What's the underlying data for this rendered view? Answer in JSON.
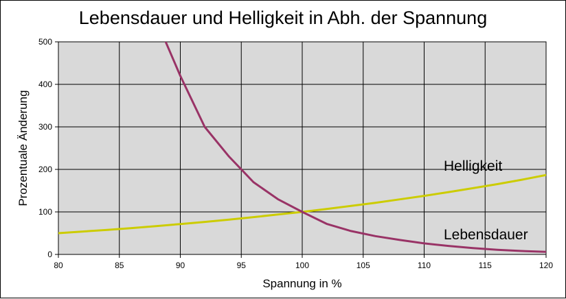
{
  "chart_data": {
    "type": "line",
    "title": "Lebensdauer und Helligkeit in Abh. der Spannung",
    "xlabel": "Spannung in %",
    "ylabel": "Prozentuale Änderung",
    "xlim": [
      80,
      120
    ],
    "ylim": [
      0,
      500
    ],
    "x_ticks": [
      "80",
      "85",
      "90",
      "95",
      "100",
      "105",
      "110",
      "115",
      "120"
    ],
    "y_ticks": [
      "0",
      "100",
      "200",
      "300",
      "400",
      "500"
    ],
    "grid": true,
    "plot_background": "#d9d9d9",
    "series": [
      {
        "name": "Helligkeit",
        "color": "#cccc00",
        "x": [
          80,
          82,
          84,
          86,
          88,
          90,
          92,
          94,
          96,
          98,
          100,
          102,
          104,
          106,
          108,
          110,
          112,
          114,
          116,
          118,
          120
        ],
        "y": [
          50.0,
          53.8,
          57.8,
          62.0,
          66.6,
          71.4,
          76.5,
          82.0,
          87.7,
          93.8,
          100.0,
          106.9,
          114.0,
          121.5,
          129.5,
          137.8,
          146.6,
          155.8,
          165.4,
          175.6,
          186.8
        ]
      },
      {
        "name": "Lebensdauer",
        "color": "#993366",
        "x": [
          88.8,
          90,
          92,
          94,
          95,
          96,
          98,
          100,
          102,
          104,
          106,
          108,
          110,
          112,
          114,
          116,
          118,
          120
        ],
        "y": [
          500,
          420,
          300,
          230,
          200,
          170,
          130,
          100,
          72,
          55,
          43,
          34,
          26,
          20,
          15,
          11,
          8,
          6
        ]
      }
    ]
  }
}
